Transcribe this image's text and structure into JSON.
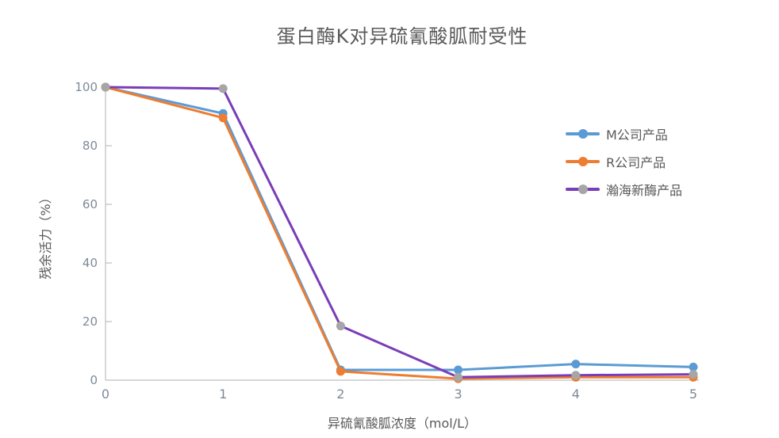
{
  "chart_data": {
    "type": "line",
    "title": "蛋白酶K对异硫氰酸胍耐受性",
    "xlabel": "异硫氰酸胍浓度（mol/L）",
    "ylabel": "残余活力（%）",
    "x": [
      0,
      1,
      2,
      3,
      4,
      5
    ],
    "xlim": [
      0,
      5
    ],
    "ylim": [
      0,
      100
    ],
    "xticks": [
      0,
      1,
      2,
      3,
      4,
      5
    ],
    "yticks": [
      0,
      20,
      40,
      60,
      80,
      100
    ],
    "grid": false,
    "legend_position": "right",
    "axis_color": "#bfbfbf",
    "tick_label_color": "#7e8a99",
    "title_color": "#595959",
    "series": [
      {
        "name": "M公司产品",
        "line_color": "#5b9bd5",
        "marker_color": "#5b9bd5",
        "values": [
          100,
          91,
          3.5,
          3.5,
          5.5,
          4.5
        ]
      },
      {
        "name": "R公司产品",
        "line_color": "#ed7d31",
        "marker_color": "#ed7d31",
        "values": [
          100,
          89.5,
          3,
          0.5,
          1,
          1
        ]
      },
      {
        "name": "瀚海新酶产品",
        "line_color": "#7a3db8",
        "marker_color": "#a6a6a6",
        "values": [
          100,
          99.5,
          18.5,
          1,
          1.7,
          2
        ]
      }
    ]
  }
}
